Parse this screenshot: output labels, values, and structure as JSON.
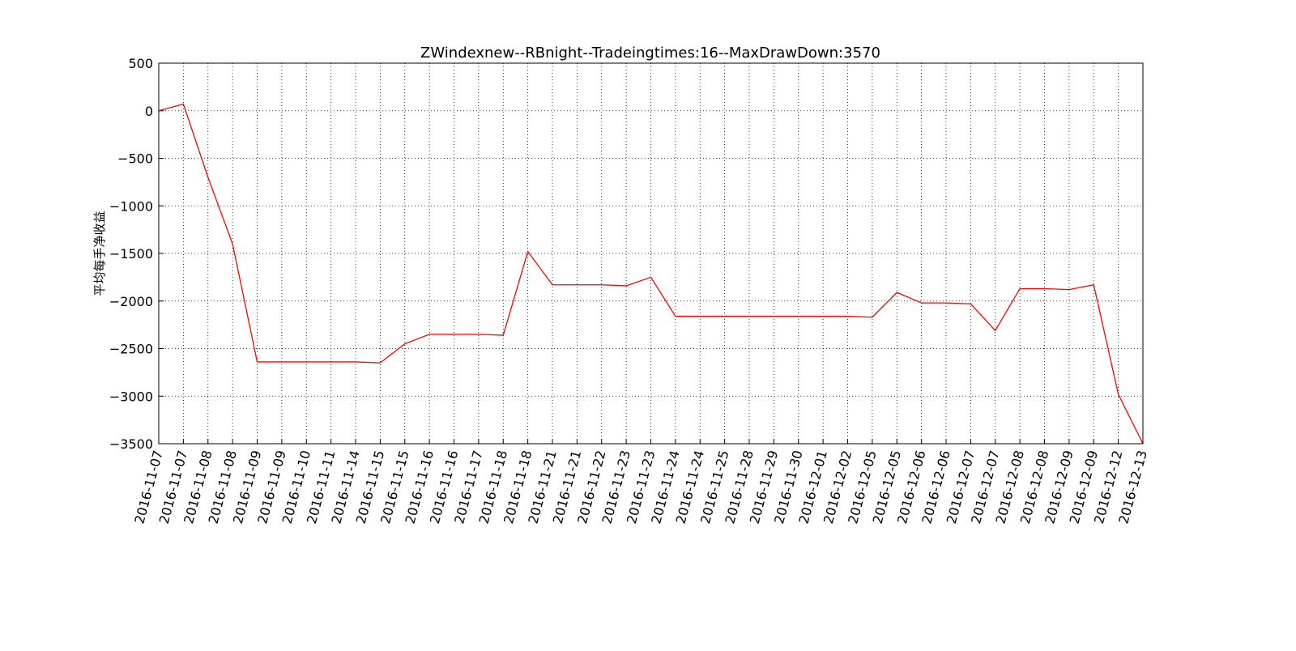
{
  "chart_data": {
    "type": "line",
    "title": "ZWindexnew--RBnight--Tradeingtimes:16--MaxDrawDown:3570",
    "y_label": "平均每手净收益",
    "categories": [
      "2016-11-07",
      "2016-11-07",
      "2016-11-08",
      "2016-11-08",
      "2016-11-09",
      "2016-11-09",
      "2016-11-10",
      "2016-11-11",
      "2016-11-14",
      "2016-11-15",
      "2016-11-15",
      "2016-11-16",
      "2016-11-16",
      "2016-11-17",
      "2016-11-18",
      "2016-11-18",
      "2016-11-21",
      "2016-11-21",
      "2016-11-22",
      "2016-11-23",
      "2016-11-23",
      "2016-11-24",
      "2016-11-24",
      "2016-11-25",
      "2016-11-28",
      "2016-11-29",
      "2016-11-30",
      "2016-12-01",
      "2016-12-02",
      "2016-12-05",
      "2016-12-05",
      "2016-12-06",
      "2016-12-06",
      "2016-12-07",
      "2016-12-07",
      "2016-12-08",
      "2016-12-08",
      "2016-12-09",
      "2016-12-09",
      "2016-12-12",
      "2016-12-13"
    ],
    "series": [
      {
        "color": "#ff0000",
        "values": [
          0,
          70,
          -700,
          -1400,
          -2640,
          -2640,
          -2640,
          -2640,
          -2640,
          -2650,
          -2450,
          -2350,
          -2350,
          -2350,
          -2360,
          -1480,
          -1830,
          -1830,
          -1830,
          -1840,
          -1750,
          -2160,
          -2160,
          -2160,
          -2160,
          -2160,
          -2160,
          -2160,
          -2160,
          -2170,
          -1910,
          -2020,
          -2020,
          -2030,
          -2310,
          -1870,
          -1870,
          -1880,
          -1830,
          -2980,
          -3500
        ]
      }
    ],
    "ylim": [
      -3500,
      500
    ],
    "yticks": [
      500,
      0,
      {
        "value": -500,
        "label": "−500"
      },
      {
        "value": -1000,
        "label": "−1000"
      },
      {
        "value": -1500,
        "label": "−1500"
      },
      {
        "value": -2000,
        "label": "−2000"
      },
      {
        "value": -2500,
        "label": "−2500"
      },
      {
        "value": -3000,
        "label": "−3000"
      },
      {
        "value": -3500,
        "label": "−3500"
      }
    ],
    "grid": true
  }
}
